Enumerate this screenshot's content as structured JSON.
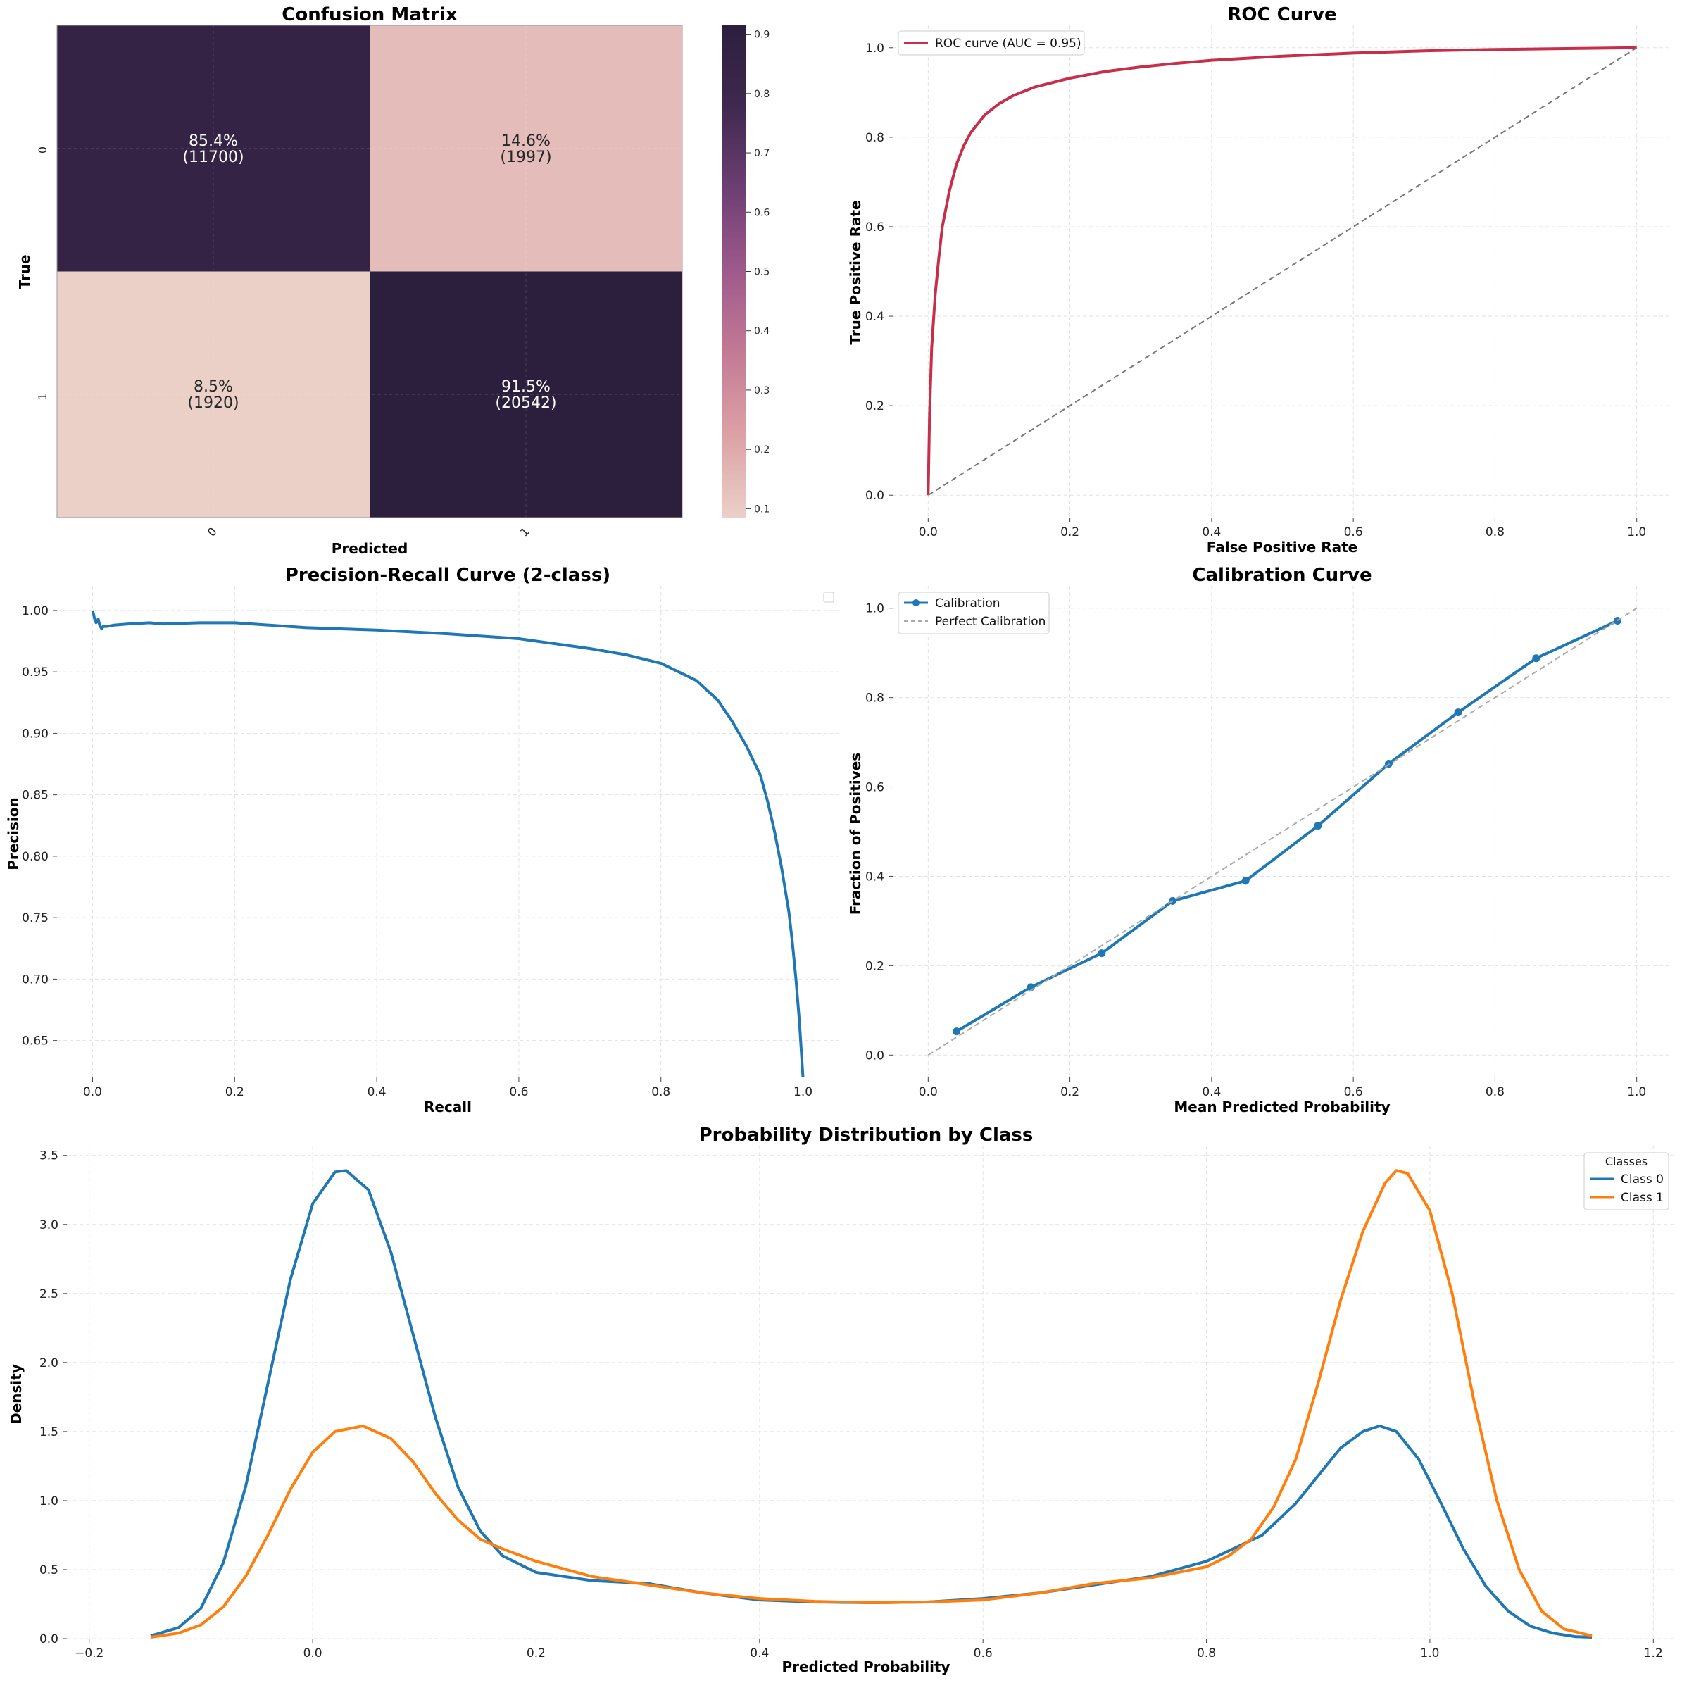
{
  "chart_data": [
    {
      "type": "heatmap",
      "title": "Confusion Matrix",
      "xlabel": "Predicted",
      "ylabel": "True",
      "x_tick_labels": [
        "0",
        "1"
      ],
      "y_tick_labels": [
        "0",
        "1"
      ],
      "cells": [
        {
          "row": 0,
          "col": 0,
          "value": 0.854,
          "pct": "85.4%",
          "count": "(11700)"
        },
        {
          "row": 0,
          "col": 1,
          "value": 0.146,
          "pct": "14.6%",
          "count": "(1997)"
        },
        {
          "row": 1,
          "col": 0,
          "value": 0.085,
          "pct": "8.5%",
          "count": "(1920)"
        },
        {
          "row": 1,
          "col": 1,
          "value": 0.915,
          "pct": "91.5%",
          "count": "(20542)"
        }
      ],
      "colorbar": {
        "range": [
          0.085,
          0.915
        ],
        "ticks": [
          0.1,
          0.2,
          0.3,
          0.4,
          0.5,
          0.6,
          0.7,
          0.8,
          0.9
        ],
        "tick_labels": [
          "0.1",
          "0.2",
          "0.3",
          "0.4",
          "0.5",
          "0.6",
          "0.7",
          "0.8",
          "0.9"
        ],
        "colors": [
          "#ebd0c8",
          "#dca2a6",
          "#c47a95",
          "#9e5a8c",
          "#6e3f73",
          "#3f2950",
          "#2c1e3d"
        ]
      }
    },
    {
      "type": "line",
      "title": "ROC Curve",
      "xlabel": "False Positive Rate",
      "ylabel": "True Positive Rate",
      "xlim": [
        -0.05,
        1.05
      ],
      "ylim": [
        -0.05,
        1.05
      ],
      "x_ticks": [
        0.0,
        0.2,
        0.4,
        0.6,
        0.8,
        1.0
      ],
      "y_ticks": [
        0.0,
        0.2,
        0.4,
        0.6,
        0.8,
        1.0
      ],
      "x_tick_labels": [
        "0.0",
        "0.2",
        "0.4",
        "0.6",
        "0.8",
        "1.0"
      ],
      "y_tick_labels": [
        "0.0",
        "0.2",
        "0.4",
        "0.6",
        "0.8",
        "1.0"
      ],
      "grid": true,
      "legend": "top-left",
      "series": [
        {
          "name": "ROC curve (AUC = 0.95)",
          "color": "#c72e4a",
          "x": [
            0,
            0.002,
            0.005,
            0.01,
            0.015,
            0.02,
            0.03,
            0.04,
            0.05,
            0.06,
            0.08,
            0.1,
            0.12,
            0.15,
            0.2,
            0.25,
            0.3,
            0.35,
            0.4,
            0.5,
            0.6,
            0.7,
            0.8,
            0.9,
            1.0
          ],
          "y": [
            0,
            0.18,
            0.33,
            0.45,
            0.53,
            0.6,
            0.68,
            0.74,
            0.78,
            0.81,
            0.85,
            0.875,
            0.893,
            0.912,
            0.932,
            0.947,
            0.957,
            0.965,
            0.972,
            0.981,
            0.988,
            0.993,
            0.996,
            0.998,
            1.0
          ]
        },
        {
          "color": "#777777",
          "dashed": true,
          "x": [
            0,
            1
          ],
          "y": [
            0,
            1
          ]
        }
      ]
    },
    {
      "type": "line",
      "title": "Precision-Recall Curve (2-class)",
      "xlabel": "Recall",
      "ylabel": "Precision",
      "xlim": [
        -0.05,
        1.05
      ],
      "ylim": [
        0.62,
        1.02
      ],
      "x_ticks": [
        0.0,
        0.2,
        0.4,
        0.6,
        0.8,
        1.0
      ],
      "y_ticks": [
        0.65,
        0.7,
        0.75,
        0.8,
        0.85,
        0.9,
        0.95,
        1.0
      ],
      "x_tick_labels": [
        "0.0",
        "0.2",
        "0.4",
        "0.6",
        "0.8",
        "1.0"
      ],
      "y_tick_labels": [
        "0.65",
        "0.70",
        "0.75",
        "0.80",
        "0.85",
        "0.90",
        "0.95",
        "1.00"
      ],
      "grid": true,
      "legend": "top-right (empty)",
      "series": [
        {
          "color": "#1f77b4",
          "x": [
            0,
            0.003,
            0.005,
            0.008,
            0.01,
            0.013,
            0.015,
            0.02,
            0.03,
            0.05,
            0.08,
            0.1,
            0.15,
            0.2,
            0.3,
            0.4,
            0.5,
            0.6,
            0.7,
            0.75,
            0.8,
            0.85,
            0.88,
            0.9,
            0.92,
            0.94,
            0.95,
            0.96,
            0.97,
            0.98,
            0.985,
            0.99,
            0.995,
            1.0
          ],
          "y": [
            1.0,
            0.993,
            0.99,
            0.993,
            0.988,
            0.985,
            0.987,
            0.987,
            0.988,
            0.989,
            0.99,
            0.989,
            0.99,
            0.99,
            0.986,
            0.984,
            0.981,
            0.977,
            0.969,
            0.964,
            0.957,
            0.943,
            0.927,
            0.91,
            0.89,
            0.866,
            0.845,
            0.82,
            0.79,
            0.755,
            0.73,
            0.7,
            0.665,
            0.62
          ]
        }
      ]
    },
    {
      "type": "line",
      "title": "Calibration Curve",
      "xlabel": "Mean Predicted Probability",
      "ylabel": "Fraction of Positives",
      "xlim": [
        -0.05,
        1.05
      ],
      "ylim": [
        -0.05,
        1.05
      ],
      "x_ticks": [
        0.0,
        0.2,
        0.4,
        0.6,
        0.8,
        1.0
      ],
      "y_ticks": [
        0.0,
        0.2,
        0.4,
        0.6,
        0.8,
        1.0
      ],
      "x_tick_labels": [
        "0.0",
        "0.2",
        "0.4",
        "0.6",
        "0.8",
        "1.0"
      ],
      "y_tick_labels": [
        "0.0",
        "0.2",
        "0.4",
        "0.6",
        "0.8",
        "1.0"
      ],
      "grid": true,
      "legend": "top-left",
      "series": [
        {
          "name": "Calibration",
          "color": "#1f77b4",
          "markers": true,
          "x": [
            0.04,
            0.145,
            0.245,
            0.345,
            0.448,
            0.55,
            0.65,
            0.748,
            0.858,
            0.973
          ],
          "y": [
            0.053,
            0.152,
            0.228,
            0.345,
            0.39,
            0.513,
            0.652,
            0.767,
            0.888,
            0.972
          ]
        },
        {
          "name": "Perfect Calibration",
          "color": "#aaaaaa",
          "dashed": true,
          "x": [
            0,
            1
          ],
          "y": [
            0,
            1
          ]
        }
      ]
    },
    {
      "type": "line",
      "title": "Probability Distribution by Class",
      "xlabel": "Predicted Probability",
      "ylabel": "Density",
      "xlim": [
        -0.22,
        1.22
      ],
      "ylim": [
        0,
        3.57
      ],
      "x_ticks": [
        -0.2,
        0.0,
        0.2,
        0.4,
        0.6,
        0.8,
        1.0,
        1.2
      ],
      "y_ticks": [
        0.0,
        0.5,
        1.0,
        1.5,
        2.0,
        2.5,
        3.0,
        3.5
      ],
      "x_tick_labels": [
        "−0.2",
        "0.0",
        "0.2",
        "0.4",
        "0.6",
        "0.8",
        "1.0",
        "1.2"
      ],
      "y_tick_labels": [
        "0.0",
        "0.5",
        "1.0",
        "1.5",
        "2.0",
        "2.5",
        "3.0",
        "3.5"
      ],
      "grid": true,
      "legend_title": "Classes",
      "legend": "top-right",
      "series": [
        {
          "name": "Class 0",
          "color": "#1f77b4",
          "x": [
            -0.145,
            -0.12,
            -0.1,
            -0.08,
            -0.06,
            -0.04,
            -0.02,
            0.0,
            0.02,
            0.03,
            0.05,
            0.07,
            0.09,
            0.11,
            0.13,
            0.15,
            0.17,
            0.2,
            0.25,
            0.3,
            0.35,
            0.4,
            0.45,
            0.5,
            0.55,
            0.6,
            0.65,
            0.7,
            0.75,
            0.8,
            0.85,
            0.88,
            0.9,
            0.92,
            0.94,
            0.955,
            0.97,
            0.99,
            1.01,
            1.03,
            1.05,
            1.07,
            1.09,
            1.11,
            1.13,
            1.145
          ],
          "y": [
            0.02,
            0.08,
            0.22,
            0.55,
            1.1,
            1.85,
            2.6,
            3.15,
            3.38,
            3.39,
            3.25,
            2.8,
            2.2,
            1.6,
            1.1,
            0.78,
            0.6,
            0.48,
            0.42,
            0.4,
            0.33,
            0.28,
            0.265,
            0.26,
            0.265,
            0.29,
            0.33,
            0.39,
            0.45,
            0.56,
            0.75,
            0.98,
            1.18,
            1.38,
            1.5,
            1.54,
            1.5,
            1.3,
            0.98,
            0.65,
            0.38,
            0.2,
            0.09,
            0.04,
            0.015,
            0.01
          ]
        },
        {
          "name": "Class 1",
          "color": "#ff7f0e",
          "x": [
            -0.145,
            -0.12,
            -0.1,
            -0.08,
            -0.06,
            -0.04,
            -0.02,
            0.0,
            0.02,
            0.045,
            0.07,
            0.09,
            0.11,
            0.13,
            0.15,
            0.17,
            0.2,
            0.25,
            0.3,
            0.35,
            0.4,
            0.45,
            0.5,
            0.55,
            0.6,
            0.65,
            0.7,
            0.75,
            0.8,
            0.82,
            0.84,
            0.86,
            0.88,
            0.9,
            0.92,
            0.94,
            0.96,
            0.97,
            0.98,
            1.0,
            1.02,
            1.04,
            1.06,
            1.08,
            1.1,
            1.12,
            1.145
          ],
          "y": [
            0.01,
            0.04,
            0.1,
            0.23,
            0.45,
            0.75,
            1.08,
            1.35,
            1.5,
            1.54,
            1.45,
            1.28,
            1.05,
            0.86,
            0.72,
            0.65,
            0.56,
            0.45,
            0.39,
            0.33,
            0.29,
            0.27,
            0.26,
            0.265,
            0.28,
            0.33,
            0.4,
            0.44,
            0.52,
            0.6,
            0.72,
            0.95,
            1.3,
            1.85,
            2.45,
            2.95,
            3.3,
            3.39,
            3.37,
            3.1,
            2.5,
            1.7,
            1.0,
            0.5,
            0.2,
            0.07,
            0.02
          ]
        }
      ]
    }
  ]
}
